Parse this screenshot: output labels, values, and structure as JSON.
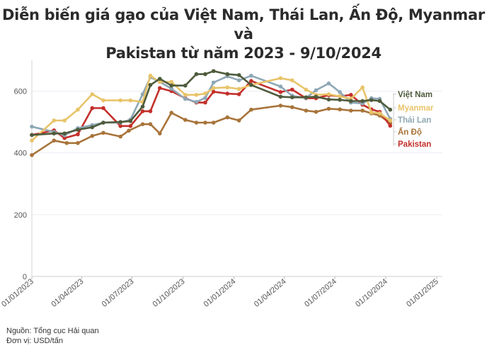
{
  "title_line1": "Diễn biến giá gạo của Việt Nam, Thái Lan, Ấn Độ, Myanmar và",
  "title_line2": "Pakistan từ năm 2023 - 9/10/2024",
  "source": "Nguồn: Tổng cục Hải quan",
  "unit": "Đơn vị: USD/tấn",
  "chart_data": {
    "type": "line",
    "title": "Diễn biến giá gạo của Việt Nam, Thái Lan, Ấn Độ, Myanmar và Pakistan từ năm 2023 - 9/10/2024",
    "xlabel": "",
    "ylabel": "",
    "x_range": [
      "2023-01-01",
      "2025-01-01"
    ],
    "ylim": [
      0,
      700
    ],
    "y_ticks": [
      0,
      200,
      400,
      600
    ],
    "x_ticks": [
      "01/01/2023",
      "01/04/2023",
      "01/07/2023",
      "01/10/2023",
      "01/01/2024",
      "01/04/2024",
      "01/07/2024",
      "01/10/2024",
      "01/01/2025"
    ],
    "grid": true,
    "legend": "right, at series ends",
    "series": [
      {
        "name": "Ấn Độ",
        "color": "#a8743a",
        "points": [
          [
            "2023-01-01",
            393
          ],
          [
            "2023-02-10",
            440
          ],
          [
            "2023-03-05",
            432
          ],
          [
            "2023-03-25",
            432
          ],
          [
            "2023-04-20",
            455
          ],
          [
            "2023-05-10",
            465
          ],
          [
            "2023-06-10",
            453
          ],
          [
            "2023-06-25",
            472
          ],
          [
            "2023-07-20",
            493
          ],
          [
            "2023-08-03",
            493
          ],
          [
            "2023-08-20",
            463
          ],
          [
            "2023-09-10",
            530
          ],
          [
            "2023-10-05",
            507
          ],
          [
            "2023-10-25",
            498
          ],
          [
            "2023-11-10",
            498
          ],
          [
            "2023-11-25",
            498
          ],
          [
            "2023-12-20",
            515
          ],
          [
            "2024-01-10",
            505
          ],
          [
            "2024-02-01",
            540
          ],
          [
            "2024-03-25",
            553
          ],
          [
            "2024-04-15",
            548
          ],
          [
            "2024-05-10",
            537
          ],
          [
            "2024-05-28",
            533
          ],
          [
            "2024-06-20",
            543
          ],
          [
            "2024-07-10",
            541
          ],
          [
            "2024-07-30",
            537
          ],
          [
            "2024-08-20",
            537
          ],
          [
            "2024-09-05",
            528
          ],
          [
            "2024-09-20",
            521
          ],
          [
            "2024-10-09",
            497
          ]
        ]
      },
      {
        "name": "Pakistan",
        "color": "#c4302b",
        "points": [
          [
            "2023-01-01",
            458
          ],
          [
            "2023-02-10",
            473
          ],
          [
            "2023-03-01",
            448
          ],
          [
            "2023-03-25",
            460
          ],
          [
            "2023-04-20",
            545
          ],
          [
            "2023-05-10",
            545
          ],
          [
            "2023-06-10",
            487
          ],
          [
            "2023-06-28",
            487
          ],
          [
            "2023-07-20",
            535
          ],
          [
            "2023-08-03",
            535
          ],
          [
            "2023-08-20",
            610
          ],
          [
            "2023-09-10",
            600
          ],
          [
            "2023-10-05",
            577
          ],
          [
            "2023-10-25",
            563
          ],
          [
            "2023-11-10",
            563
          ],
          [
            "2023-11-25",
            598
          ],
          [
            "2023-12-20",
            592
          ],
          [
            "2024-01-10",
            590
          ],
          [
            "2024-02-01",
            633
          ],
          [
            "2024-03-25",
            597
          ],
          [
            "2024-04-15",
            605
          ],
          [
            "2024-05-10",
            577
          ],
          [
            "2024-05-28",
            577
          ],
          [
            "2024-06-20",
            587
          ],
          [
            "2024-07-10",
            583
          ],
          [
            "2024-07-30",
            588
          ],
          [
            "2024-08-20",
            556
          ],
          [
            "2024-09-05",
            541
          ],
          [
            "2024-09-20",
            533
          ],
          [
            "2024-10-09",
            488
          ]
        ]
      },
      {
        "name": "Thái Lan",
        "color": "#8ea7b5",
        "points": [
          [
            "2023-01-01",
            485
          ],
          [
            "2023-02-10",
            468
          ],
          [
            "2023-03-01",
            457
          ],
          [
            "2023-03-25",
            480
          ],
          [
            "2023-04-20",
            490
          ],
          [
            "2023-05-10",
            498
          ],
          [
            "2023-06-10",
            498
          ],
          [
            "2023-06-28",
            508
          ],
          [
            "2023-07-20",
            590
          ],
          [
            "2023-08-03",
            645
          ],
          [
            "2023-08-20",
            630
          ],
          [
            "2023-09-10",
            608
          ],
          [
            "2023-10-05",
            575
          ],
          [
            "2023-10-25",
            565
          ],
          [
            "2023-11-10",
            578
          ],
          [
            "2023-11-25",
            628
          ],
          [
            "2023-12-20",
            648
          ],
          [
            "2024-01-10",
            635
          ],
          [
            "2024-02-01",
            650
          ],
          [
            "2024-03-25",
            615
          ],
          [
            "2024-04-15",
            585
          ],
          [
            "2024-05-10",
            578
          ],
          [
            "2024-05-28",
            603
          ],
          [
            "2024-06-20",
            625
          ],
          [
            "2024-07-10",
            597
          ],
          [
            "2024-07-30",
            563
          ],
          [
            "2024-08-20",
            560
          ],
          [
            "2024-09-05",
            577
          ],
          [
            "2024-09-20",
            575
          ],
          [
            "2024-10-09",
            510
          ]
        ]
      },
      {
        "name": "Myanmar",
        "color": "#e8c46a",
        "points": [
          [
            "2023-01-01",
            440
          ],
          [
            "2023-02-10",
            505
          ],
          [
            "2023-03-01",
            505
          ],
          [
            "2023-03-25",
            540
          ],
          [
            "2023-04-20",
            590
          ],
          [
            "2023-05-10",
            570
          ],
          [
            "2023-06-10",
            570
          ],
          [
            "2023-06-28",
            570
          ],
          [
            "2023-07-20",
            565
          ],
          [
            "2023-08-03",
            650
          ],
          [
            "2023-08-20",
            630
          ],
          [
            "2023-09-10",
            630
          ],
          [
            "2023-10-05",
            588
          ],
          [
            "2023-10-25",
            588
          ],
          [
            "2023-11-10",
            592
          ],
          [
            "2023-11-25",
            610
          ],
          [
            "2023-12-20",
            612
          ],
          [
            "2024-01-10",
            607
          ],
          [
            "2024-02-01",
            620
          ],
          [
            "2024-03-25",
            642
          ],
          [
            "2024-04-15",
            635
          ],
          [
            "2024-05-10",
            605
          ],
          [
            "2024-05-28",
            588
          ],
          [
            "2024-06-20",
            590
          ],
          [
            "2024-07-10",
            583
          ],
          [
            "2024-07-30",
            575
          ],
          [
            "2024-08-20",
            612
          ],
          [
            "2024-09-05",
            531
          ],
          [
            "2024-09-20",
            528
          ],
          [
            "2024-10-09",
            505
          ]
        ]
      },
      {
        "name": "Việt Nam",
        "color": "#4e5b3c",
        "points": [
          [
            "2023-01-01",
            458
          ],
          [
            "2023-02-10",
            463
          ],
          [
            "2023-03-01",
            463
          ],
          [
            "2023-03-25",
            475
          ],
          [
            "2023-04-20",
            483
          ],
          [
            "2023-05-10",
            498
          ],
          [
            "2023-06-10",
            500
          ],
          [
            "2023-06-28",
            503
          ],
          [
            "2023-07-20",
            550
          ],
          [
            "2023-08-03",
            620
          ],
          [
            "2023-08-20",
            640
          ],
          [
            "2023-09-10",
            618
          ],
          [
            "2023-10-05",
            618
          ],
          [
            "2023-10-25",
            655
          ],
          [
            "2023-11-10",
            655
          ],
          [
            "2023-11-25",
            665
          ],
          [
            "2023-12-20",
            655
          ],
          [
            "2024-01-10",
            652
          ],
          [
            "2024-02-01",
            620
          ],
          [
            "2024-03-25",
            582
          ],
          [
            "2024-04-15",
            580
          ],
          [
            "2024-05-10",
            580
          ],
          [
            "2024-05-28",
            582
          ],
          [
            "2024-06-20",
            573
          ],
          [
            "2024-07-10",
            572
          ],
          [
            "2024-07-30",
            568
          ],
          [
            "2024-08-20",
            568
          ],
          [
            "2024-09-05",
            571
          ],
          [
            "2024-09-20",
            568
          ],
          [
            "2024-10-09",
            540
          ]
        ]
      }
    ],
    "legend_labels": [
      {
        "name": "Việt Nam",
        "color": "#4e5b3c"
      },
      {
        "name": "Myanmar",
        "color": "#e8c46a"
      },
      {
        "name": "Thái Lan",
        "color": "#8ea7b5"
      },
      {
        "name": "Ấn Độ",
        "color": "#a8743a"
      },
      {
        "name": "Pakistan",
        "color": "#c4302b"
      }
    ]
  }
}
